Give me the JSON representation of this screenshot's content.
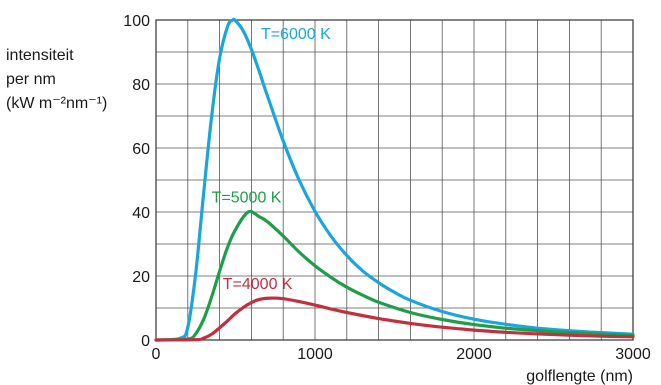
{
  "chart_data": {
    "type": "line",
    "xlabel": "golflengte  (nm)",
    "ylabel_lines": [
      "intensiteit",
      "per nm",
      "(kW m⁻²nm⁻¹)"
    ],
    "xlim": [
      0,
      3000
    ],
    "ylim": [
      0,
      100
    ],
    "x_ticks": [
      0,
      1000,
      2000,
      3000
    ],
    "x_tick_labels": [
      "0",
      "1000",
      "2000",
      "3000"
    ],
    "y_ticks": [
      0,
      20,
      40,
      60,
      80,
      100
    ],
    "y_tick_labels": [
      "0",
      "20",
      "40",
      "60",
      "80",
      "100"
    ],
    "grid": true,
    "series": [
      {
        "name": "T=6000 K",
        "color": "#1aa6dc",
        "label_at": [
          660,
          94
        ],
        "x": [
          150,
          200,
          250,
          300,
          350,
          400,
          450,
          483,
          500,
          550,
          600,
          650,
          700,
          800,
          900,
          1000,
          1100,
          1200,
          1300,
          1400,
          1500,
          1600,
          1800,
          2000,
          2200,
          2400,
          2600,
          2800,
          3000
        ],
        "values": [
          0.5,
          4,
          21,
          46,
          70,
          88,
          98,
          100,
          99.8,
          96.5,
          90.8,
          83.8,
          76.4,
          62.2,
          50.0,
          40.2,
          32.5,
          26.4,
          21.6,
          17.9,
          14.9,
          12.4,
          8.9,
          6.5,
          4.9,
          3.7,
          2.9,
          2.3,
          1.8
        ]
      },
      {
        "name": "T=5000 K",
        "color": "#1e9e4a",
        "label_at": [
          350,
          43
        ],
        "x": [
          200,
          250,
          300,
          350,
          400,
          450,
          500,
          580,
          650,
          700,
          800,
          900,
          1000,
          1100,
          1200,
          1300,
          1400,
          1600,
          1800,
          2000,
          2200,
          2400,
          2600,
          2800,
          3000
        ],
        "values": [
          0.3,
          2,
          6.5,
          13.5,
          21.5,
          29,
          34.5,
          40,
          38.5,
          37,
          32.5,
          27.5,
          23.2,
          19.6,
          16.5,
          14,
          11.8,
          8.6,
          6.4,
          4.8,
          3.7,
          2.9,
          2.3,
          1.8,
          1.4
        ]
      },
      {
        "name": "T=4000 K",
        "color": "#c0303f",
        "label_at": [
          420,
          16
        ],
        "x": [
          250,
          300,
          350,
          400,
          450,
          500,
          550,
          600,
          650,
          725,
          800,
          900,
          1000,
          1100,
          1200,
          1400,
          1600,
          1800,
          2000,
          2200,
          2400,
          2600,
          2800,
          3000
        ],
        "values": [
          0.1,
          0.6,
          1.8,
          3.8,
          6,
          8.3,
          10.2,
          11.7,
          12.7,
          13.1,
          12.9,
          12.0,
          10.9,
          9.7,
          8.6,
          6.7,
          5.2,
          4.0,
          3.1,
          2.4,
          1.9,
          1.5,
          1.2,
          1.0
        ]
      }
    ]
  }
}
